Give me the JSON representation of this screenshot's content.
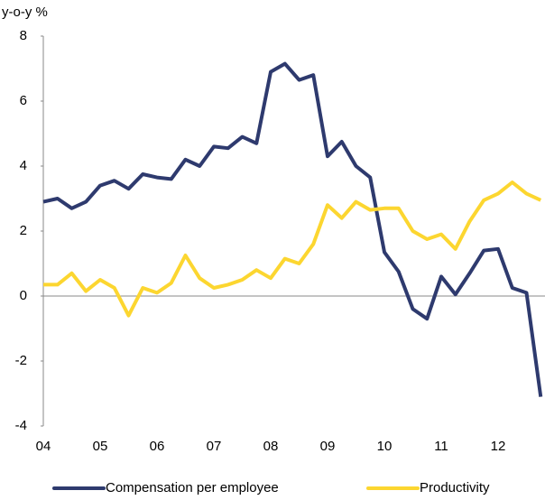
{
  "chart_data": {
    "type": "line",
    "y_label": "y-o-y %",
    "categories": [
      "04",
      null,
      null,
      null,
      "05",
      null,
      null,
      null,
      "06",
      null,
      null,
      null,
      "07",
      null,
      null,
      null,
      "08",
      null,
      null,
      null,
      "09",
      null,
      null,
      null,
      "10",
      null,
      null,
      null,
      "11",
      null,
      null,
      null,
      "12",
      null,
      null,
      null
    ],
    "series": [
      {
        "name": "Compensation per employee",
        "color": "#2e3a6e",
        "values": [
          2.9,
          3.0,
          2.7,
          2.9,
          3.4,
          3.55,
          3.3,
          3.75,
          3.65,
          3.6,
          4.2,
          4.0,
          4.6,
          4.55,
          4.9,
          4.7,
          6.9,
          7.15,
          6.65,
          6.8,
          4.3,
          4.75,
          4.0,
          3.65,
          1.35,
          0.75,
          -0.4,
          -0.7,
          0.6,
          0.05,
          0.7,
          1.4,
          1.45,
          0.25,
          0.1,
          -3.1
        ]
      },
      {
        "name": "Productivity",
        "color": "#fcd630",
        "values": [
          0.35,
          0.35,
          0.7,
          0.15,
          0.5,
          0.25,
          -0.6,
          0.25,
          0.1,
          0.4,
          1.25,
          0.55,
          0.25,
          0.35,
          0.5,
          0.8,
          0.55,
          1.15,
          1.0,
          1.6,
          2.8,
          2.4,
          2.9,
          2.65,
          2.7,
          2.7,
          2.0,
          1.75,
          1.9,
          1.45,
          2.3,
          2.95,
          3.15,
          3.5,
          3.15,
          2.95
        ]
      }
    ],
    "ylim": [
      -4,
      8
    ],
    "yticks": [
      -4,
      -2,
      0,
      2,
      4,
      6,
      8
    ],
    "legend": "bottom"
  }
}
